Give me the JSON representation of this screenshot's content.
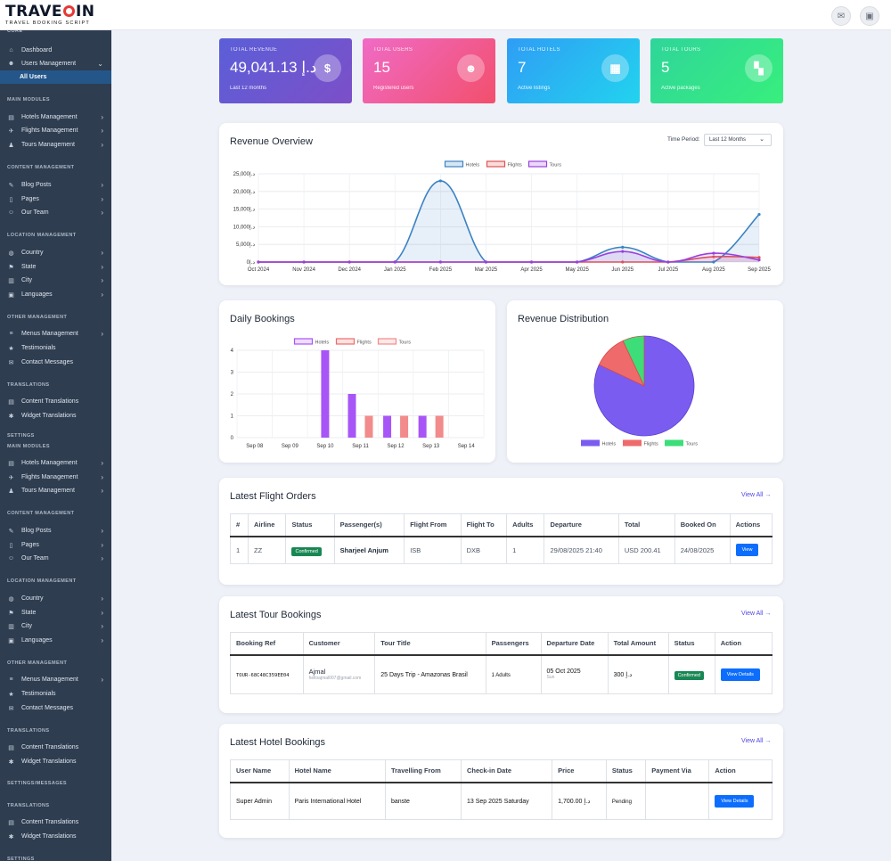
{
  "brand": {
    "name_a": "TRAVE",
    "name_b": "IN",
    "tagline": "TRAVEL BOOKING SCRIPT"
  },
  "topbar": {
    "mail_icon": "envelope-icon",
    "profile_icon": "user-card-icon"
  },
  "sidebar": {
    "cut_top": "CORE",
    "dashboard": "Dashboard",
    "users_management": "Users Management",
    "all_users": "All Users",
    "main_modules": "MAIN MODULES",
    "hotels": "Hotels Management",
    "flights": "Flights Management",
    "tours": "Tours Management",
    "content_management": "CONTENT MANAGEMENT",
    "blog": "Blog Posts",
    "pages": "Pages",
    "team": "Our Team",
    "location_management": "LOCATION MANAGEMENT",
    "country": "Country",
    "state": "State",
    "city": "City",
    "languages": "Languages",
    "other_management": "OTHER MANAGEMENT",
    "menus": "Menus Management",
    "testimonials": "Testimonials",
    "contact": "Contact Messages",
    "translations": "TRANSLATIONS",
    "content_translations": "Content Translations",
    "widget_translations": "Widget Translations",
    "settings_cut": "SETTINGS",
    "settings_cut2": "SETTINGS/MESSAGES",
    "settings_cut3": "SETTINGS"
  },
  "stats": [
    {
      "label": "TOTAL REVENUE",
      "value": "49,041.13 د.إ",
      "sub": "Last 12 months",
      "icon": "dollar-icon",
      "color_a": "#5b5fd8",
      "color_b": "#7c4fc8"
    },
    {
      "label": "TOTAL USERS",
      "value": "15",
      "sub": "Registered users",
      "icon": "users-icon",
      "color_a": "#f06bc6",
      "color_b": "#f24f6c"
    },
    {
      "label": "TOTAL HOTELS",
      "value": "7",
      "sub": "Active listings",
      "icon": "hotel-icon",
      "color_a": "#2f9df5",
      "color_b": "#22d3ee"
    },
    {
      "label": "TOTAL TOURS",
      "value": "5",
      "sub": "Active packages",
      "icon": "map-icon",
      "color_a": "#2fd59a",
      "color_b": "#38ef7d"
    }
  ],
  "revenue_card": {
    "title": "Revenue Overview",
    "time_period_label": "Time Period:",
    "time_period_value": "Last 12 Months"
  },
  "daily_card": {
    "title": "Daily Bookings"
  },
  "distribution_card": {
    "title": "Revenue Distribution"
  },
  "chart_data": [
    {
      "type": "line",
      "x": [
        "Oct 2024",
        "Nov 2024",
        "Dec 2024",
        "Jan 2025",
        "Feb 2025",
        "Mar 2025",
        "Apr 2025",
        "May 2025",
        "Jun 2025",
        "Jul 2025",
        "Aug 2025",
        "Sep 2025"
      ],
      "series": [
        {
          "name": "Hotels",
          "color": "#3b82c4",
          "values": [
            0,
            0,
            0,
            0,
            23000,
            0,
            0,
            0,
            4200,
            0,
            0,
            13500
          ]
        },
        {
          "name": "Flights",
          "color": "#e05252",
          "values": [
            0,
            0,
            0,
            0,
            0,
            0,
            0,
            0,
            0,
            0,
            1500,
            1300
          ]
        },
        {
          "name": "Tours",
          "color": "#9b3fe0",
          "values": [
            0,
            0,
            0,
            0,
            0,
            0,
            0,
            0,
            3000,
            0,
            2500,
            600
          ]
        }
      ],
      "ylim": [
        0,
        25000
      ],
      "yticks": [
        "0د.إ",
        "5,000د.إ",
        "10,000د.إ",
        "15,000د.إ",
        "20,000د.إ",
        "25,000د.إ"
      ],
      "grid": true,
      "legend": "top"
    },
    {
      "type": "bar",
      "categories": [
        "Sep 08",
        "Sep 09",
        "Sep 10",
        "Sep 11",
        "Sep 12",
        "Sep 13",
        "Sep 14"
      ],
      "series": [
        {
          "name": "Hotels",
          "color": "#a855f7",
          "values": [
            0,
            0,
            4,
            2,
            1,
            1,
            0
          ]
        },
        {
          "name": "Flights",
          "color": "#ef6b6b",
          "values": [
            0,
            0,
            0,
            0,
            0,
            0,
            0
          ]
        },
        {
          "name": "Tours",
          "color": "#f28b8b",
          "values": [
            0,
            0,
            0,
            1,
            1,
            1,
            0
          ]
        }
      ],
      "ylim": [
        0,
        4
      ],
      "yticks": [
        "0",
        "1",
        "2",
        "3",
        "4"
      ],
      "grid": true,
      "legend": "top"
    },
    {
      "type": "pie",
      "categories": [
        "Hotels",
        "Flights",
        "Tours"
      ],
      "values": [
        82,
        11,
        7
      ],
      "colors": [
        "#7b5cf0",
        "#ef6b6b",
        "#3dde7a"
      ],
      "legend": "bottom"
    }
  ],
  "flight_orders": {
    "title": "Latest Flight Orders",
    "view_all": "View All →",
    "headers": [
      "#",
      "Airline",
      "Status",
      "Passenger(s)",
      "Flight From",
      "Flight To",
      "Adults",
      "Departure",
      "Total",
      "Booked On",
      "Actions"
    ],
    "rows": [
      {
        "num": "1",
        "airline": "ZZ",
        "status": "Confirmed",
        "passenger": "Sharjeel Anjum",
        "from": "ISB",
        "to": "DXB",
        "adults": "1",
        "departure": "29/08/2025 21:40",
        "total": "USD 200.41",
        "booked_on": "24/08/2025",
        "action": "View"
      }
    ]
  },
  "tour_bookings": {
    "title": "Latest Tour Bookings",
    "view_all": "View All →",
    "headers": [
      "Booking Ref",
      "Customer",
      "Tour Title",
      "Passengers",
      "Departure Date",
      "Total Amount",
      "Status",
      "Action"
    ],
    "rows": [
      {
        "ref": "TOUR-68C48C359EE04",
        "customer": "Ajmal",
        "email": "helloajmal007@gmail.com",
        "tour": "25 Days Trip - Amazonas Brasil",
        "passengers": "1 Adults",
        "date": "05 Oct 2025",
        "day": "Sun",
        "amount": "300 د.إ",
        "status": "Confirmed",
        "action": "View Details"
      }
    ]
  },
  "hotel_bookings": {
    "title": "Latest Hotel Bookings",
    "view_all": "View All →",
    "headers": [
      "User Name",
      "Hotel Name",
      "Travelling From",
      "Check-in Date",
      "Price",
      "Status",
      "Payment Via",
      "Action"
    ],
    "rows": [
      {
        "user": "Super Admin",
        "hotel": "Paris International Hotel",
        "from": "banste",
        "checkin": "13 Sep 2025 Saturday",
        "price": "1,700.00 د.إ",
        "status": "Pending",
        "payment": "",
        "action": "View Details"
      }
    ]
  }
}
